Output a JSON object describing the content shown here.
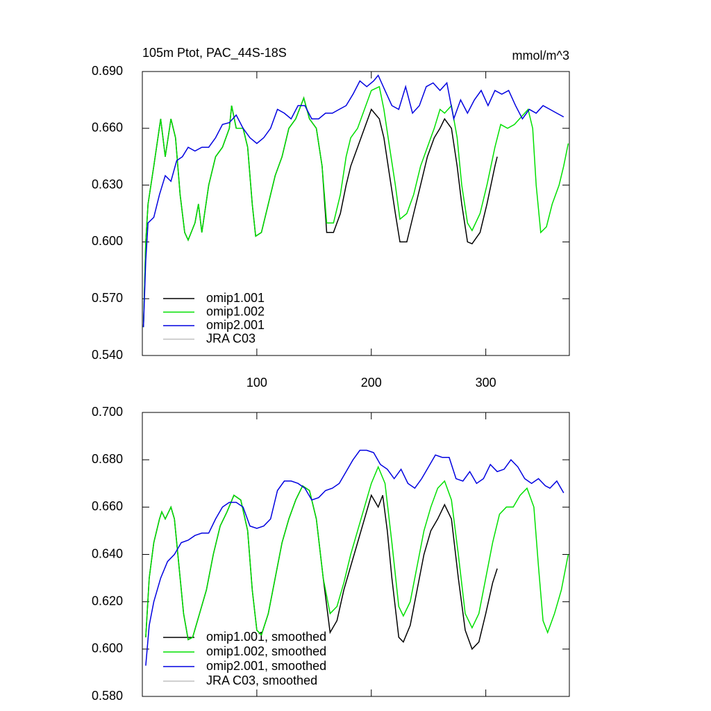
{
  "chart_data": [
    {
      "type": "line",
      "title": "105m Ptot, PAC_44S-18S",
      "units": "mmol/m^3",
      "xlim": [
        0,
        373
      ],
      "ylim": [
        0.54,
        0.69
      ],
      "xticks": [
        100,
        200,
        300
      ],
      "yticks": [
        {
          "value": 0.54,
          "label": "0.540"
        },
        {
          "value": 0.57,
          "label": "0.570"
        },
        {
          "value": 0.6,
          "label": "0.600"
        },
        {
          "value": 0.63,
          "label": "0.630"
        },
        {
          "value": 0.66,
          "label": "0.660"
        },
        {
          "value": 0.69,
          "label": "0.690"
        }
      ],
      "legend": "lower left",
      "series": [
        {
          "name": "omip1.001",
          "color": "#000000",
          "x": [
            1,
            3,
            5,
            10,
            16,
            20,
            25,
            29,
            33,
            37,
            40,
            46,
            49,
            52,
            58,
            64,
            70,
            76,
            78,
            82,
            88,
            92,
            96,
            99,
            104,
            110,
            116,
            122,
            128,
            134,
            141,
            146,
            152,
            157,
            161,
            167,
            173,
            178,
            182,
            188,
            194,
            200,
            207,
            211,
            216,
            221,
            225,
            231,
            237,
            243,
            249,
            255,
            260,
            264,
            270,
            275,
            279,
            284,
            288,
            295,
            301,
            308,
            310
          ],
          "values": [
            0.555,
            0.6,
            0.62,
            0.64,
            0.665,
            0.645,
            0.665,
            0.655,
            0.625,
            0.605,
            0.601,
            0.61,
            0.62,
            0.605,
            0.63,
            0.645,
            0.65,
            0.66,
            0.672,
            0.66,
            0.66,
            0.65,
            0.62,
            0.603,
            0.605,
            0.62,
            0.635,
            0.645,
            0.66,
            0.665,
            0.676,
            0.665,
            0.66,
            0.64,
            0.605,
            0.605,
            0.615,
            0.63,
            0.64,
            0.65,
            0.66,
            0.67,
            0.665,
            0.655,
            0.635,
            0.615,
            0.6,
            0.6,
            0.615,
            0.63,
            0.645,
            0.655,
            0.66,
            0.665,
            0.66,
            0.64,
            0.62,
            0.6,
            0.599,
            0.605,
            0.62,
            0.64,
            0.645
          ]
        },
        {
          "name": "omip1.002",
          "color": "#00e000",
          "x": [
            1,
            3,
            5,
            10,
            16,
            20,
            25,
            29,
            33,
            37,
            40,
            46,
            49,
            52,
            58,
            64,
            70,
            76,
            78,
            82,
            88,
            92,
            96,
            99,
            104,
            110,
            116,
            122,
            128,
            134,
            141,
            146,
            152,
            157,
            161,
            167,
            173,
            178,
            182,
            188,
            194,
            200,
            207,
            211,
            216,
            221,
            225,
            231,
            237,
            243,
            249,
            255,
            260,
            264,
            270,
            275,
            279,
            284,
            288,
            295,
            301,
            308,
            313,
            319,
            325,
            331,
            337,
            341,
            344,
            348,
            353,
            358,
            364,
            368,
            372
          ],
          "values": [
            0.555,
            0.6,
            0.62,
            0.64,
            0.665,
            0.645,
            0.665,
            0.655,
            0.625,
            0.605,
            0.601,
            0.61,
            0.62,
            0.605,
            0.63,
            0.645,
            0.65,
            0.66,
            0.672,
            0.66,
            0.66,
            0.65,
            0.62,
            0.603,
            0.605,
            0.62,
            0.635,
            0.645,
            0.66,
            0.665,
            0.676,
            0.665,
            0.66,
            0.64,
            0.61,
            0.61,
            0.625,
            0.645,
            0.655,
            0.66,
            0.67,
            0.68,
            0.682,
            0.67,
            0.65,
            0.63,
            0.612,
            0.615,
            0.625,
            0.64,
            0.65,
            0.66,
            0.67,
            0.668,
            0.672,
            0.655,
            0.63,
            0.61,
            0.606,
            0.615,
            0.63,
            0.65,
            0.662,
            0.66,
            0.662,
            0.666,
            0.67,
            0.66,
            0.63,
            0.605,
            0.608,
            0.62,
            0.63,
            0.64,
            0.652
          ]
        },
        {
          "name": "omip2.001",
          "color": "#0000e0",
          "x": [
            1,
            3,
            5,
            10,
            15,
            20,
            25,
            30,
            35,
            40,
            46,
            52,
            58,
            64,
            70,
            76,
            82,
            88,
            94,
            100,
            106,
            112,
            118,
            124,
            130,
            136,
            142,
            148,
            154,
            160,
            166,
            172,
            178,
            184,
            190,
            196,
            202,
            206,
            212,
            218,
            224,
            230,
            236,
            242,
            248,
            254,
            260,
            266,
            272,
            278,
            284,
            290,
            296,
            302,
            308,
            314,
            320,
            326,
            332,
            338,
            344,
            350,
            356,
            362,
            368
          ],
          "values": [
            0.555,
            0.59,
            0.61,
            0.613,
            0.625,
            0.635,
            0.632,
            0.643,
            0.645,
            0.65,
            0.648,
            0.65,
            0.65,
            0.655,
            0.662,
            0.663,
            0.667,
            0.66,
            0.655,
            0.652,
            0.655,
            0.66,
            0.67,
            0.668,
            0.665,
            0.672,
            0.672,
            0.665,
            0.665,
            0.668,
            0.668,
            0.67,
            0.672,
            0.678,
            0.685,
            0.682,
            0.685,
            0.688,
            0.68,
            0.672,
            0.67,
            0.682,
            0.668,
            0.672,
            0.682,
            0.684,
            0.68,
            0.684,
            0.665,
            0.675,
            0.668,
            0.675,
            0.68,
            0.672,
            0.68,
            0.678,
            0.68,
            0.672,
            0.665,
            0.67,
            0.668,
            0.672,
            0.67,
            0.668,
            0.666
          ]
        },
        {
          "name": "JRA C03",
          "color": "#c0c0c0",
          "x": [],
          "values": []
        }
      ]
    },
    {
      "type": "line",
      "xlim": [
        0,
        373
      ],
      "ylim": [
        0.58,
        0.7
      ],
      "xticks": [
        100,
        200,
        300
      ],
      "yticks": [
        {
          "value": 0.58,
          "label": "0.580"
        },
        {
          "value": 0.6,
          "label": "0.600"
        },
        {
          "value": 0.62,
          "label": "0.620"
        },
        {
          "value": 0.64,
          "label": "0.640"
        },
        {
          "value": 0.66,
          "label": "0.660"
        },
        {
          "value": 0.68,
          "label": "0.680"
        },
        {
          "value": 0.7,
          "label": "0.700"
        }
      ],
      "legend": "lower left",
      "series": [
        {
          "name": "omip1.001, smoothed",
          "color": "#000000",
          "x": [
            3,
            6,
            10,
            15,
            17,
            20,
            25,
            28,
            32,
            36,
            40,
            44,
            50,
            56,
            62,
            68,
            74,
            80,
            86,
            92,
            96,
            100,
            104,
            110,
            116,
            122,
            128,
            134,
            140,
            146,
            152,
            158,
            164,
            170,
            176,
            182,
            188,
            194,
            200,
            206,
            210,
            214,
            218,
            224,
            228,
            234,
            240,
            246,
            252,
            258,
            264,
            270,
            276,
            282,
            288,
            294,
            300,
            306,
            310
          ],
          "values": [
            0.605,
            0.63,
            0.645,
            0.655,
            0.658,
            0.655,
            0.66,
            0.655,
            0.635,
            0.615,
            0.604,
            0.605,
            0.615,
            0.625,
            0.64,
            0.652,
            0.658,
            0.665,
            0.663,
            0.65,
            0.625,
            0.608,
            0.606,
            0.615,
            0.63,
            0.645,
            0.655,
            0.663,
            0.669,
            0.667,
            0.655,
            0.63,
            0.607,
            0.612,
            0.625,
            0.635,
            0.645,
            0.655,
            0.665,
            0.66,
            0.665,
            0.65,
            0.63,
            0.605,
            0.603,
            0.61,
            0.625,
            0.64,
            0.65,
            0.655,
            0.661,
            0.655,
            0.63,
            0.608,
            0.6,
            0.603,
            0.615,
            0.628,
            0.634
          ]
        },
        {
          "name": "omip1.002, smoothed",
          "color": "#00e000",
          "x": [
            3,
            6,
            10,
            15,
            17,
            20,
            25,
            28,
            32,
            36,
            40,
            44,
            50,
            56,
            62,
            68,
            74,
            80,
            86,
            92,
            96,
            100,
            104,
            110,
            116,
            122,
            128,
            134,
            140,
            146,
            152,
            158,
            164,
            170,
            176,
            182,
            188,
            194,
            200,
            206,
            212,
            218,
            224,
            228,
            234,
            240,
            246,
            252,
            258,
            264,
            270,
            276,
            282,
            288,
            294,
            300,
            306,
            312,
            318,
            324,
            330,
            336,
            342,
            346,
            350,
            354,
            360,
            366,
            372
          ],
          "values": [
            0.605,
            0.63,
            0.645,
            0.655,
            0.658,
            0.655,
            0.66,
            0.655,
            0.635,
            0.615,
            0.604,
            0.605,
            0.615,
            0.625,
            0.64,
            0.652,
            0.658,
            0.665,
            0.663,
            0.65,
            0.625,
            0.608,
            0.606,
            0.615,
            0.63,
            0.645,
            0.655,
            0.663,
            0.669,
            0.667,
            0.655,
            0.63,
            0.615,
            0.618,
            0.628,
            0.64,
            0.65,
            0.66,
            0.67,
            0.677,
            0.67,
            0.645,
            0.618,
            0.614,
            0.62,
            0.635,
            0.65,
            0.66,
            0.668,
            0.671,
            0.663,
            0.64,
            0.615,
            0.609,
            0.615,
            0.63,
            0.645,
            0.657,
            0.66,
            0.66,
            0.665,
            0.668,
            0.66,
            0.635,
            0.612,
            0.607,
            0.615,
            0.625,
            0.64
          ]
        },
        {
          "name": "omip2.001, smoothed",
          "color": "#0000e0",
          "x": [
            3,
            6,
            10,
            16,
            22,
            28,
            34,
            40,
            46,
            52,
            58,
            64,
            70,
            76,
            82,
            88,
            94,
            100,
            106,
            112,
            118,
            124,
            130,
            136,
            142,
            148,
            154,
            160,
            166,
            172,
            178,
            184,
            190,
            196,
            202,
            208,
            214,
            220,
            226,
            232,
            238,
            244,
            250,
            256,
            262,
            268,
            274,
            280,
            286,
            292,
            298,
            304,
            310,
            316,
            322,
            328,
            334,
            340,
            346,
            352,
            356,
            362,
            368
          ],
          "values": [
            0.593,
            0.61,
            0.62,
            0.63,
            0.637,
            0.64,
            0.645,
            0.646,
            0.648,
            0.649,
            0.649,
            0.655,
            0.66,
            0.662,
            0.662,
            0.66,
            0.652,
            0.651,
            0.652,
            0.655,
            0.667,
            0.671,
            0.671,
            0.67,
            0.668,
            0.663,
            0.664,
            0.667,
            0.668,
            0.67,
            0.675,
            0.68,
            0.684,
            0.684,
            0.683,
            0.678,
            0.676,
            0.672,
            0.676,
            0.67,
            0.668,
            0.672,
            0.677,
            0.682,
            0.681,
            0.681,
            0.672,
            0.671,
            0.675,
            0.67,
            0.672,
            0.678,
            0.675,
            0.676,
            0.68,
            0.677,
            0.672,
            0.67,
            0.672,
            0.669,
            0.668,
            0.671,
            0.666
          ]
        },
        {
          "name": "JRA C03, smoothed",
          "color": "#c0c0c0",
          "x": [],
          "values": []
        }
      ]
    }
  ]
}
